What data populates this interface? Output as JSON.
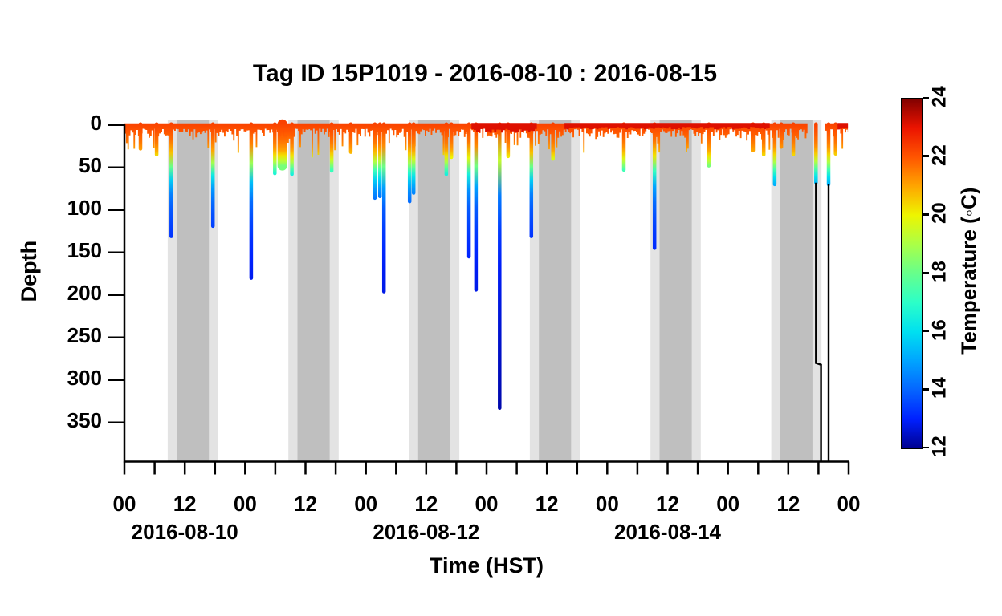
{
  "title": "Tag ID 15P1019 - 2016-08-10 : 2016-08-15",
  "chart_data": {
    "type": "line",
    "subtype": "depth-time-profile-colored-by-temperature",
    "title": "Tag ID 15P1019 - 2016-08-10 : 2016-08-15",
    "xlabel": "Time (HST)",
    "ylabel": "Depth",
    "ylim": [
      0,
      396
    ],
    "y_ticks": [
      0,
      50,
      100,
      150,
      200,
      250,
      300,
      350
    ],
    "x_span_hours": 144,
    "x_start_date": "2016-08-10",
    "hour_tick_step": 6,
    "hour_label_step": 12,
    "hour_label_names": [
      "00",
      "12"
    ],
    "date_labels": [
      {
        "label": "2016-08-10",
        "hour": 12
      },
      {
        "label": "2016-08-12",
        "hour": 60
      },
      {
        "label": "2016-08-14",
        "hour": 108
      }
    ],
    "grid": false,
    "night_bands": {
      "light_color": "#E3E3E3",
      "dark_color": "#BFBFBF",
      "days": [
        0,
        1,
        2,
        3,
        4,
        5
      ],
      "light_start_hour": 8.6,
      "light_end_hour": 18.6,
      "dark_start_hour": 10.4,
      "dark_end_hour": 16.8
    },
    "dives_hour_depth_width": [
      [
        3.2,
        28
      ],
      [
        6.4,
        35
      ],
      [
        9.3,
        131
      ],
      [
        17.6,
        119
      ],
      [
        25.2,
        180
      ],
      [
        29.9,
        57
      ],
      [
        31.4,
        48,
        12
      ],
      [
        33.3,
        58
      ],
      [
        41.2,
        54
      ],
      [
        45.0,
        32
      ],
      [
        49.8,
        86
      ],
      [
        50.8,
        84
      ],
      [
        51.6,
        196
      ],
      [
        56.7,
        90
      ],
      [
        57.5,
        80
      ],
      [
        64.0,
        58
      ],
      [
        65.0,
        38
      ],
      [
        68.5,
        155
      ],
      [
        69.9,
        194
      ],
      [
        74.6,
        333
      ],
      [
        76.3,
        37
      ],
      [
        80.9,
        131
      ],
      [
        85.2,
        40
      ],
      [
        99.3,
        53
      ],
      [
        105.4,
        145
      ],
      [
        116.2,
        48
      ],
      [
        125.0,
        30
      ],
      [
        127.1,
        35
      ],
      [
        129.3,
        70
      ],
      [
        130.6,
        26
      ],
      [
        133.0,
        35
      ],
      [
        137.5,
        68
      ],
      [
        140.0,
        70
      ],
      [
        141.4,
        34
      ]
    ],
    "surface_layer": {
      "segments_hours": [
        [
          0,
          135.8
        ],
        [
          139.3,
          143.85
        ]
      ],
      "typical_depth_m": 12,
      "max_wiggle_depth_m": 40,
      "sample_step_hours": 0.3,
      "base_m": 4.5,
      "var_m": 11,
      "deep_wiggle_prob": 0.15,
      "deep_wiggle_extra_m": 24,
      "seed": 31
    },
    "warm_red_top_segments": [
      {
        "start_hour": 69.0,
        "end_hour": 82.0,
        "depth_m": 7
      },
      {
        "start_hour": 87.5,
        "end_hour": 128.3,
        "depth_m": 4
      },
      {
        "start_hour": 141.8,
        "end_hour": 143.85,
        "depth_m": 5
      }
    ],
    "terminal_black_tracks_hour_depth": [
      [
        [
          137.5,
          68
        ],
        [
          137.5,
          280
        ],
        [
          138.5,
          282
        ],
        [
          138.5,
          396
        ]
      ],
      [
        [
          140.0,
          70
        ],
        [
          140.0,
          396
        ]
      ]
    ],
    "water_temp_profile_depth_c": [
      [
        0,
        22.3
      ],
      [
        10,
        22.0
      ],
      [
        20,
        21.6
      ],
      [
        30,
        21.0
      ],
      [
        38,
        20.0
      ],
      [
        45,
        18.8
      ],
      [
        52,
        17.5
      ],
      [
        60,
        16.2
      ],
      [
        70,
        15.2
      ],
      [
        82,
        14.4
      ],
      [
        100,
        13.8
      ],
      [
        130,
        13.3
      ],
      [
        170,
        12.9
      ],
      [
        240,
        12.6
      ],
      [
        350,
        12.2
      ]
    ],
    "colorbar": {
      "label": "Temperature (◦C)",
      "min": 12,
      "max": 24,
      "ticks": [
        12,
        14,
        16,
        18,
        20,
        22,
        24
      ],
      "colormap": [
        [
          12,
          "#00008F"
        ],
        [
          13,
          "#0020FF"
        ],
        [
          14,
          "#0565FF"
        ],
        [
          15,
          "#00A4FF"
        ],
        [
          16,
          "#00E0F0"
        ],
        [
          17,
          "#2CFFC8"
        ],
        [
          18,
          "#66FF8C"
        ],
        [
          19,
          "#AAFF47"
        ],
        [
          20,
          "#EEF500"
        ],
        [
          21,
          "#FFA500"
        ],
        [
          22,
          "#FF5500"
        ],
        [
          23,
          "#EB1300"
        ],
        [
          24,
          "#800000"
        ]
      ]
    },
    "colors": {
      "axis": "#000000",
      "surface_band_top": "#FF5000",
      "red_strip": "#DE1000",
      "background": "#FFFFFF"
    }
  }
}
